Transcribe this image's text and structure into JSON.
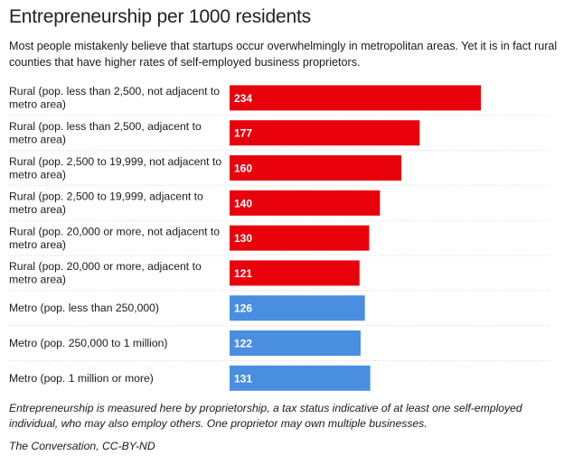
{
  "title": "Entrepreneurship per 1000 residents",
  "subtitle": "Most people mistakenly believe that startups occur overwhelmingly in metropolitan areas. Yet it is in fact rural counties that have higher rates of self-employed business proprietors.",
  "note": "Entrepreneurship is measured here by proprietorship, a tax status indicative of at least one self-employed individual, who may also employ others. One proprietor may own multiple businesses.",
  "source": "The Conversation, CC-BY-ND",
  "colors": {
    "rural": "#e8000b",
    "metro": "#4a8ee0",
    "gridline": "#d6d6d6"
  },
  "chart_data": {
    "type": "bar",
    "orientation": "horizontal",
    "categories": [
      [
        "Rural (pop. less than 2,500, not adjacent to",
        "metro area)"
      ],
      [
        "Rural (pop. less than 2,500, adjacent to",
        "metro area)"
      ],
      [
        "Rural (pop. 2,500 to 19,999, not adjacent to",
        "metro area)"
      ],
      [
        "Rural (pop. 2,500 to 19,999, adjacent to",
        "metro area)"
      ],
      [
        "Rural (pop. 20,000 or more, not adjacent to",
        "metro area)"
      ],
      [
        "Rural (pop. 20,000 or more, adjacent to",
        "metro area)"
      ],
      [
        "Metro (pop. less than 250,000)"
      ],
      [
        "Metro (pop. 250,000 to 1 million)"
      ],
      [
        "Metro (pop. 1 million or more)"
      ]
    ],
    "values": [
      234,
      177,
      160,
      140,
      130,
      121,
      126,
      122,
      131
    ],
    "groups": [
      "rural",
      "rural",
      "rural",
      "rural",
      "rural",
      "rural",
      "metro",
      "metro",
      "metro"
    ],
    "xlim": [
      0,
      234
    ],
    "value_labels": true,
    "grid": false
  }
}
